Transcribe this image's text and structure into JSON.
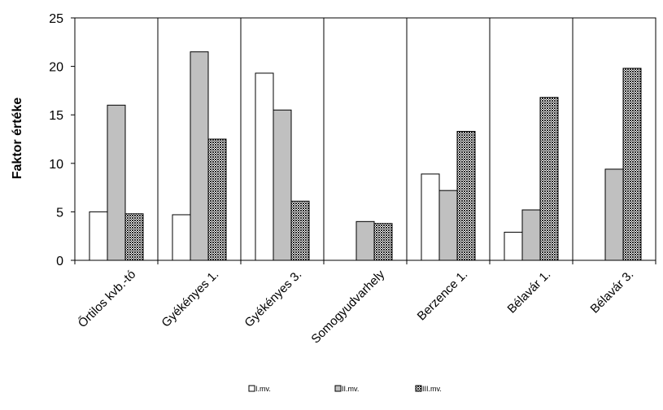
{
  "chart_data": {
    "type": "bar",
    "title": "",
    "xlabel": "",
    "ylabel": "Faktor értéke",
    "ylim": [
      0,
      25
    ],
    "yticks": [
      "0",
      "5",
      "10",
      "15",
      "20",
      "25"
    ],
    "grid": "vertical-category-separators",
    "legend_position": "bottom",
    "categories": [
      "Őrtilos kvb.-tó",
      "Gyékényes 1.",
      "Gyékényes 3.",
      "Somogyudvarhely",
      "Berzence 1.",
      "Bélavár 1.",
      "Bélavár 3."
    ],
    "series": [
      {
        "name": "I.mv.",
        "fill": "#ffffff",
        "values": [
          5.0,
          4.7,
          19.3,
          0,
          8.9,
          2.9,
          0
        ]
      },
      {
        "name": "II.mv.",
        "fill": "#c0c0c0",
        "values": [
          16.0,
          21.5,
          15.5,
          4.0,
          7.2,
          5.2,
          9.4
        ]
      },
      {
        "name": "III.mv.",
        "fill": "#333333",
        "pattern": "crosshatch",
        "values": [
          4.8,
          12.5,
          6.1,
          3.8,
          13.3,
          16.8,
          19.8
        ]
      }
    ]
  }
}
